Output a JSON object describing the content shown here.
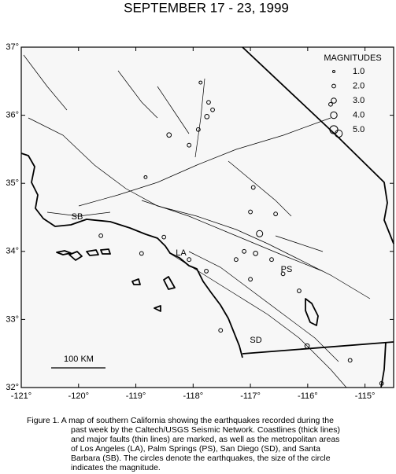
{
  "title": "SEPTEMBER 17 - 23, 1999",
  "map": {
    "xlim": [
      -121,
      -114.5
    ],
    "ylim": [
      32,
      37
    ],
    "xticks": [
      {
        "value": -121,
        "label": "-121°"
      },
      {
        "value": -120,
        "label": "-120°"
      },
      {
        "value": -119,
        "label": "-119°"
      },
      {
        "value": -118,
        "label": "-118°"
      },
      {
        "value": -117,
        "label": "-117°"
      },
      {
        "value": -116,
        "label": "-116°"
      },
      {
        "value": -115,
        "label": "-115°"
      }
    ],
    "yticks": [
      {
        "value": 32,
        "label": "32°"
      },
      {
        "value": 33,
        "label": "33°"
      },
      {
        "value": 34,
        "label": "34°"
      },
      {
        "value": 35,
        "label": "35°"
      },
      {
        "value": 36,
        "label": "36°"
      },
      {
        "value": 37,
        "label": "37°"
      }
    ],
    "places": [
      "SB",
      "LA",
      "PS",
      "SD"
    ],
    "scale_label": "100 KM",
    "legend": {
      "title": "MAGNITUDES",
      "magnitudes": [
        {
          "value": 1,
          "label": "1.0"
        },
        {
          "value": 2,
          "label": "2.0"
        },
        {
          "value": 3,
          "label": "3.0"
        },
        {
          "value": 4,
          "label": "4.0"
        },
        {
          "value": 5,
          "label": "5.0"
        }
      ]
    },
    "quakes": {
      "lon": [
        -117.73,
        -117.76,
        -117.66,
        -118.42,
        -118.07,
        -117.91,
        -116.84,
        -117.0,
        -116.95,
        -117.11,
        -116.91,
        -116.63,
        -116.43,
        -117.25,
        -117.0,
        -118.07,
        -117.77,
        -118.51,
        -118.9,
        -116.56,
        -115.46,
        -115.6,
        -116.15,
        -116.01,
        -115.26,
        -117.52,
        -118.83,
        -117.87,
        -114.71,
        -119.61
      ],
      "lat": [
        36.19,
        35.98,
        36.08,
        35.71,
        35.56,
        35.79,
        34.26,
        34.58,
        34.94,
        34.0,
        33.97,
        33.88,
        33.67,
        33.88,
        33.59,
        33.88,
        33.71,
        34.21,
        33.97,
        34.55,
        35.73,
        36.16,
        33.42,
        32.61,
        32.4,
        32.84,
        35.09,
        36.48,
        32.06,
        34.23
      ],
      "mag": [
        2,
        2.5,
        2,
        2.5,
        2,
        2,
        3.8,
        2,
        2,
        2,
        2.5,
        2,
        2,
        2,
        2,
        2,
        2,
        2,
        2,
        2,
        4.5,
        2,
        2,
        2.5,
        2,
        2,
        1.5,
        1.5,
        2,
        2
      ]
    }
  },
  "caption": [
    "Figure 1. A map of southern California showing the earthquakes recorded during the",
    "past week by the Caltech/USGS Seismic Network.  Coastlines (thick lines)",
    "and major faults (thin lines) are marked, as well as the metropolitan areas",
    "of Los Angeles (LA), Palm Springs (PS), San Diego (SD), and Santa",
    "Barbara (SB).  The circles denote the earthquakes, the size of the circle",
    "indicates the magnitude."
  ]
}
